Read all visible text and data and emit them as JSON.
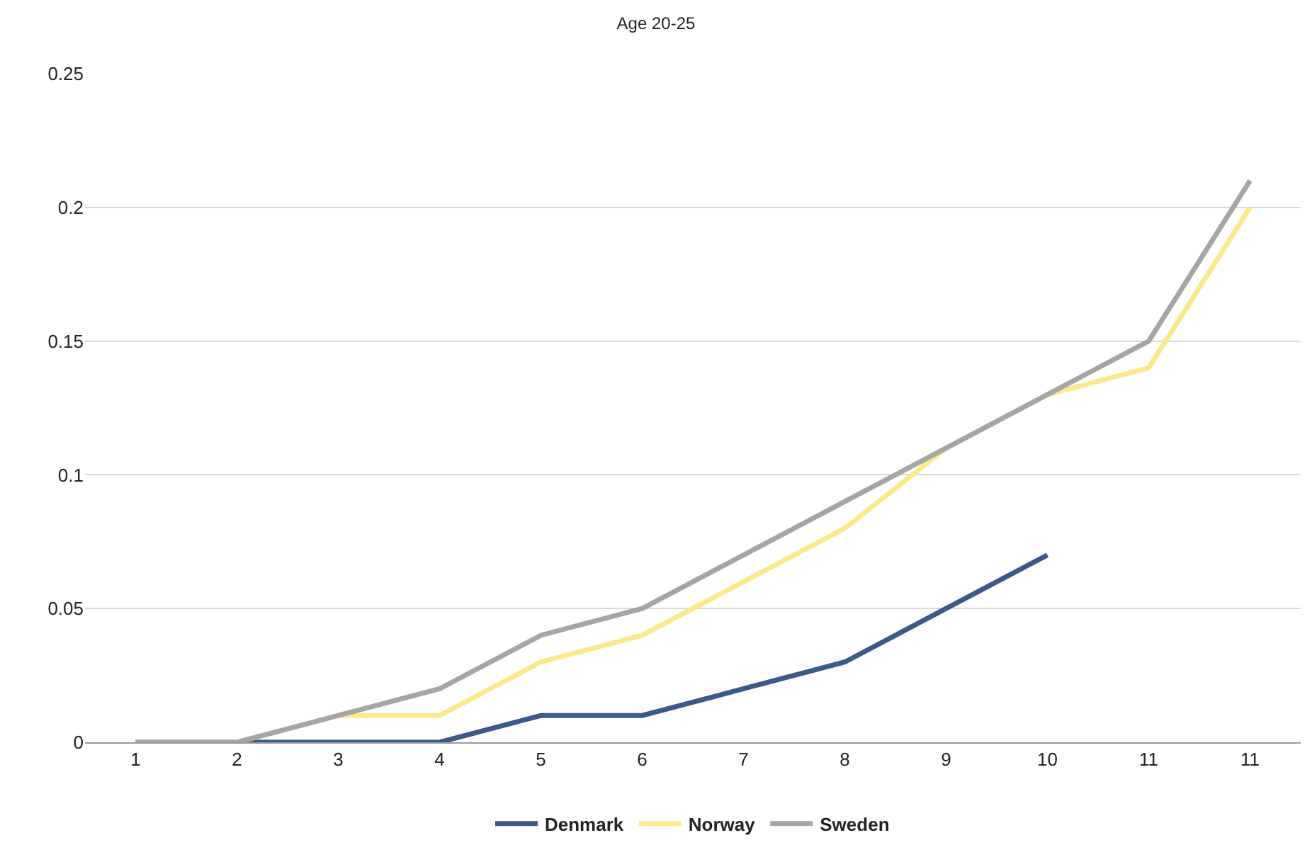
{
  "chart_data": {
    "type": "line",
    "title": "Age 20-25",
    "categories": [
      "1",
      "2",
      "3",
      "4",
      "5",
      "6",
      "7",
      "8",
      "9",
      "10",
      "11",
      "11"
    ],
    "series": [
      {
        "name": "Denmark",
        "color": "#3b5a8a",
        "values": [
          0,
          0,
          0,
          0,
          0.01,
          0.01,
          0.02,
          0.03,
          0.05,
          0.07,
          null,
          null
        ]
      },
      {
        "name": "Norway",
        "color": "#fce98c",
        "values": [
          0,
          0,
          0.01,
          0.01,
          0.03,
          0.04,
          0.06,
          0.08,
          0.11,
          0.13,
          0.14,
          0.2
        ]
      },
      {
        "name": "Sweden",
        "color": "#a6a6a6",
        "values": [
          0,
          0,
          0.01,
          0.02,
          0.04,
          0.05,
          0.07,
          0.09,
          0.11,
          0.13,
          0.15,
          0.21
        ]
      }
    ],
    "ylim": [
      0,
      0.25
    ],
    "yticks": [
      0,
      0.05,
      0.1,
      0.15,
      0.2,
      0.25
    ],
    "grid": "y",
    "legend": "bottom",
    "marker": "none",
    "line_style": "solid"
  }
}
